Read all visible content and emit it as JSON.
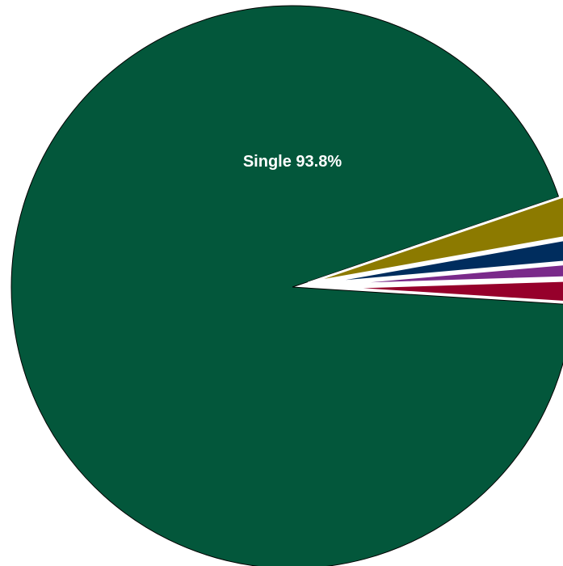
{
  "chart_data": {
    "type": "pie",
    "categories": [
      "Single",
      null,
      null,
      null,
      null
    ],
    "values": [
      93.8,
      2.4,
      1.4,
      0.9,
      1.5
    ],
    "value_labels": [
      "93.8%",
      null,
      null,
      null,
      null
    ],
    "colors": [
      "#03573b",
      "#8c7a00",
      "#002d5e",
      "#7a2a8a",
      "#96002b"
    ],
    "clockwise": true
  }
}
